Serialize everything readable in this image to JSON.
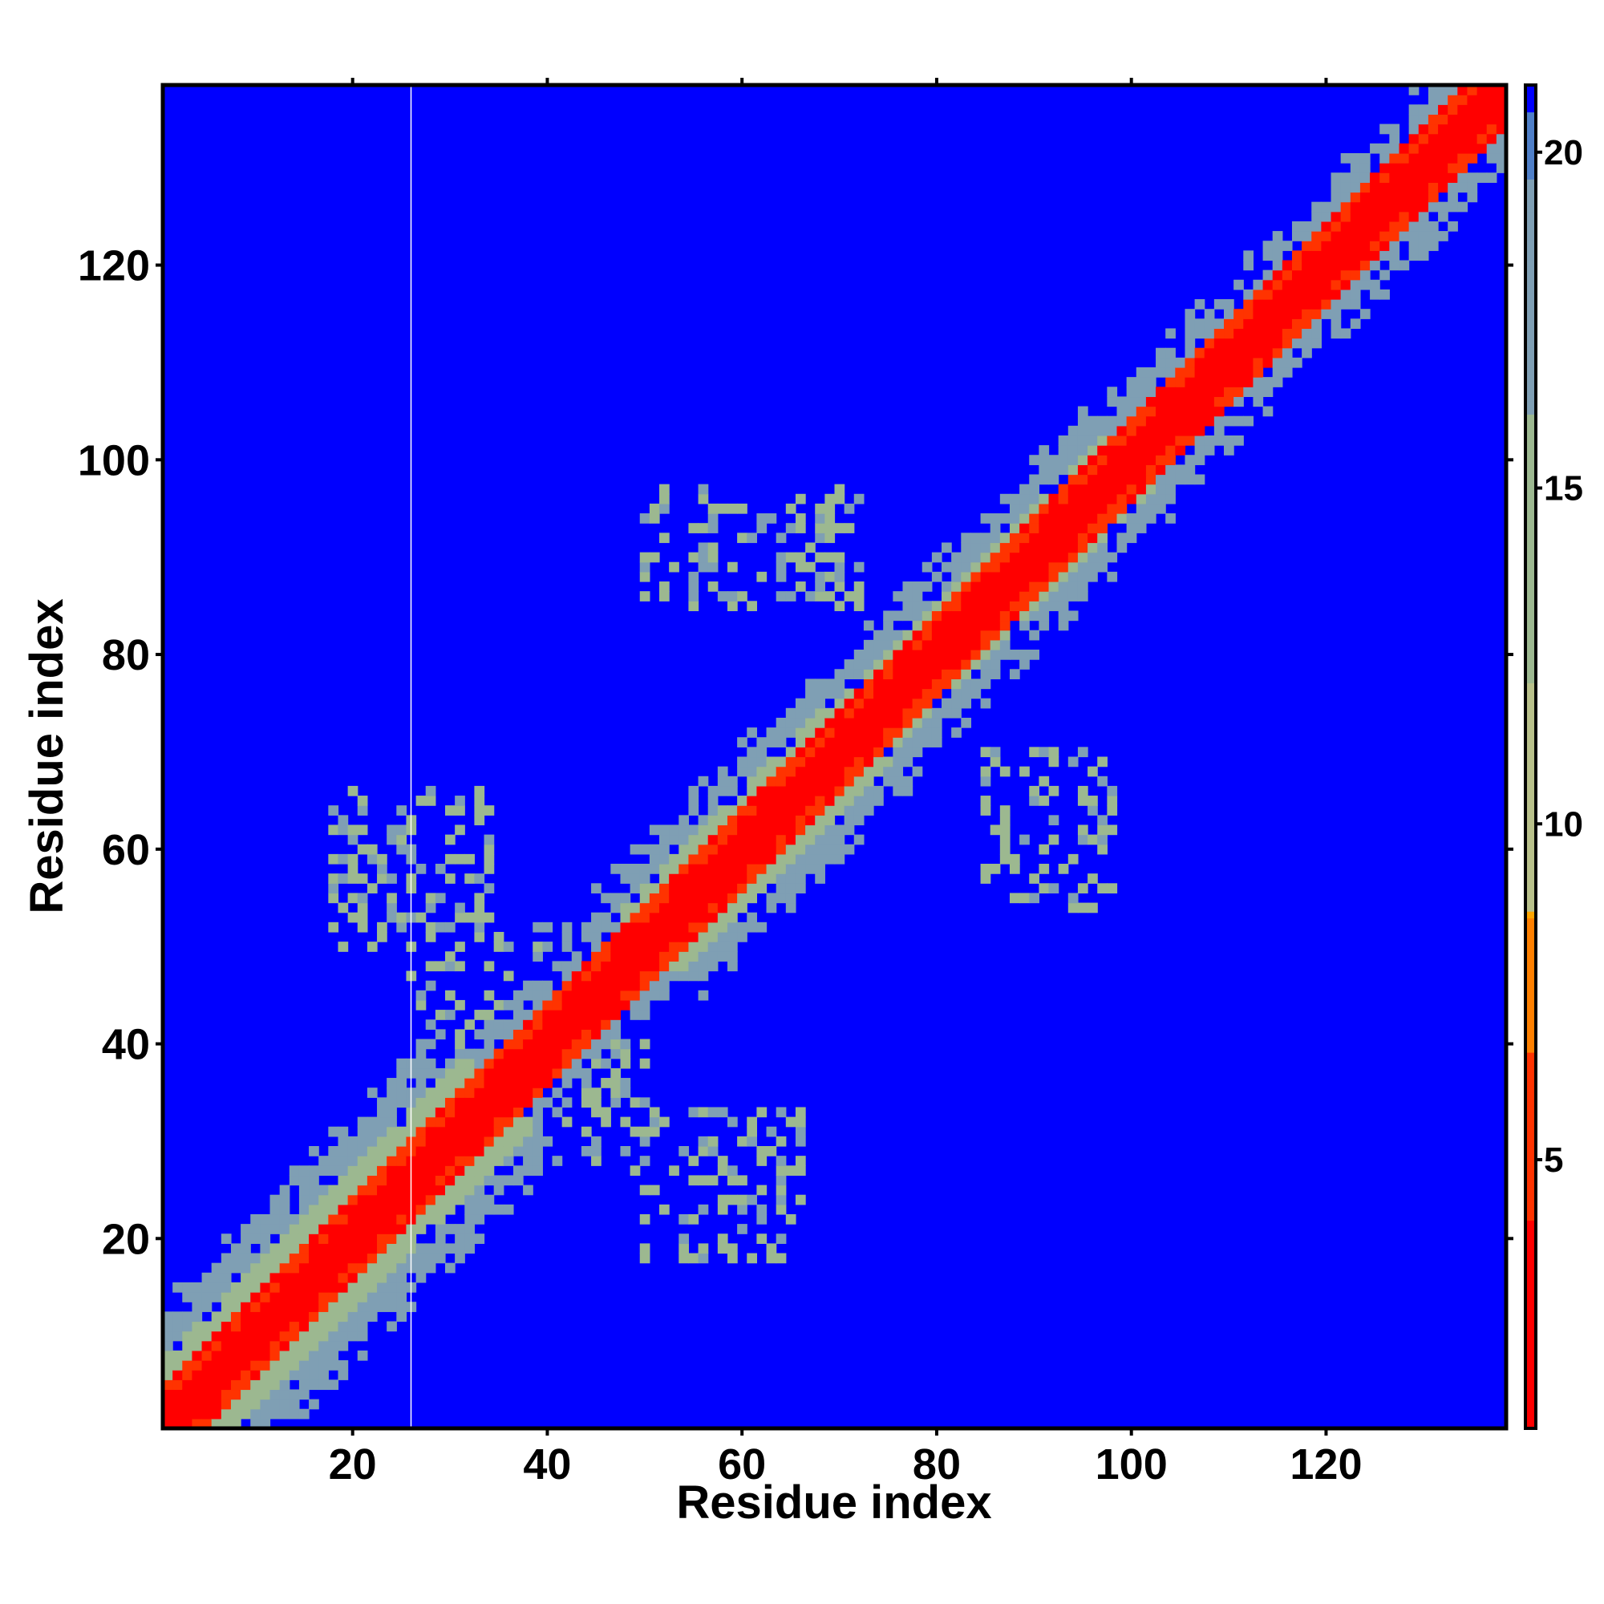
{
  "chart_data": {
    "type": "heatmap",
    "title": "",
    "xlabel": "Residue index",
    "ylabel": "Residue index",
    "n_residues": 138,
    "xlim": [
      1,
      138
    ],
    "ylim": [
      1,
      138
    ],
    "x_ticks": [
      20,
      40,
      60,
      80,
      100,
      120
    ],
    "y_ticks": [
      20,
      40,
      60,
      80,
      100,
      120
    ],
    "colorbar": {
      "range": [
        1,
        21
      ],
      "ticks": [
        5,
        10,
        15,
        20
      ],
      "stops": [
        {
          "value": 1.0,
          "color": "#ff0000"
        },
        {
          "value": 4.0,
          "color": "#ff3300"
        },
        {
          "value": 6.5,
          "color": "#ff8000"
        },
        {
          "value": 8.5,
          "color": "#ffa500"
        },
        {
          "value": 8.6,
          "color": "#b8c08a"
        },
        {
          "value": 12.0,
          "color": "#9cb890"
        },
        {
          "value": 16.0,
          "color": "#7f9fb4"
        },
        {
          "value": 19.5,
          "color": "#4f7fc8"
        },
        {
          "value": 20.5,
          "color": "#0000ff"
        }
      ]
    },
    "value_meaning": "inter-residue distance; blue background = beyond cutoff",
    "diagonal_band_halfwidth_by_segment": [
      {
        "from": 1,
        "to": 35,
        "halfwidth": 11
      },
      {
        "from": 35,
        "to": 50,
        "halfwidth": 6
      },
      {
        "from": 50,
        "to": 72,
        "halfwidth": 9
      },
      {
        "from": 72,
        "to": 100,
        "halfwidth": 8
      },
      {
        "from": 100,
        "to": 138,
        "halfwidth": 7
      }
    ],
    "off_diagonal_contact_regions": [
      {
        "x": [
          18,
          34
        ],
        "y": [
          50,
          66
        ]
      },
      {
        "x": [
          50,
          72
        ],
        "y": [
          85,
          97
        ]
      },
      {
        "x": [
          50,
          66
        ],
        "y": [
          18,
          33
        ]
      },
      {
        "x": [
          85,
          98
        ],
        "y": [
          54,
          70
        ]
      },
      {
        "x": [
          26,
          50
        ],
        "y": [
          27,
          52
        ]
      }
    ],
    "missing_residue_column": 26
  }
}
